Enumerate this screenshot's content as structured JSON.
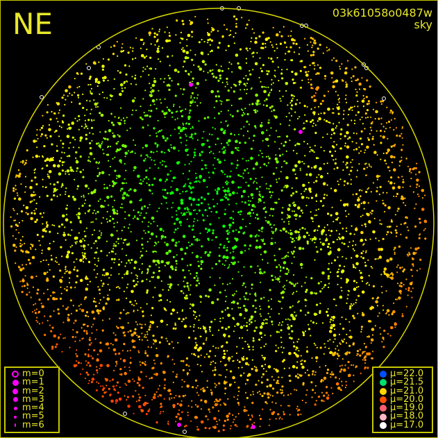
{
  "direction_label": "NE",
  "header": {
    "id": "03k61058o0487w",
    "subtitle": "sky"
  },
  "magnitude_legend": [
    {
      "label": "m=0",
      "size": 10,
      "hollow": true
    },
    {
      "label": "m=1",
      "size": 9,
      "hollow": false
    },
    {
      "label": "m=2",
      "size": 8,
      "hollow": false
    },
    {
      "label": "m=3",
      "size": 7,
      "hollow": false
    },
    {
      "label": "m=4",
      "size": 5,
      "hollow": false
    },
    {
      "label": "m=5",
      "size": 4,
      "hollow": false
    },
    {
      "label": "m=6",
      "size": 2,
      "hollow": false
    }
  ],
  "magnitude_color": "#ff00ff",
  "brightness_legend": [
    {
      "label": "μ=22.0",
      "color": "#0050ff"
    },
    {
      "label": "μ=21.5",
      "color": "#00e070"
    },
    {
      "label": "μ=21.0",
      "color": "#ffd800"
    },
    {
      "label": "μ=20.0",
      "color": "#ff5000"
    },
    {
      "label": "μ=19.0",
      "color": "#ff6070"
    },
    {
      "label": "μ=18.0",
      "color": "#ffb8c8"
    },
    {
      "label": "μ=17.0",
      "color": "#ffffff"
    }
  ],
  "horizon_color": "#d8d800"
}
